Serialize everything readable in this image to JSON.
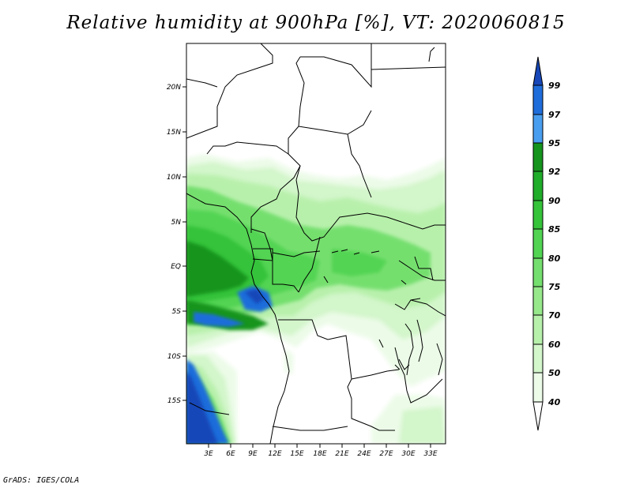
{
  "title": "Relative humidity at 900hPa [%], VT: 2020060815",
  "credit": "GrADS: IGES/COLA",
  "map": {
    "lat_labels": [
      "20N",
      "15N",
      "10N",
      "5N",
      "EQ",
      "5S",
      "10S",
      "15S"
    ],
    "lon_labels": [
      "3E",
      "6E",
      "9E",
      "12E",
      "15E",
      "18E",
      "21E",
      "24E",
      "27E",
      "30E",
      "33E"
    ]
  },
  "colorbar": {
    "levels": [
      "40",
      "50",
      "60",
      "70",
      "75",
      "80",
      "85",
      "90",
      "92",
      "95",
      "97",
      "99"
    ],
    "colors": [
      "#ffffff",
      "#ecfbe8",
      "#d3f6cb",
      "#b7f0ab",
      "#97e88b",
      "#74df6e",
      "#52d452",
      "#35c33a",
      "#20ad2a",
      "#15941d",
      "#4a9ef0",
      "#1f6ddb",
      "#1747b8"
    ]
  },
  "colors": {
    "land_border": "#000000",
    "frame": "#000000"
  }
}
